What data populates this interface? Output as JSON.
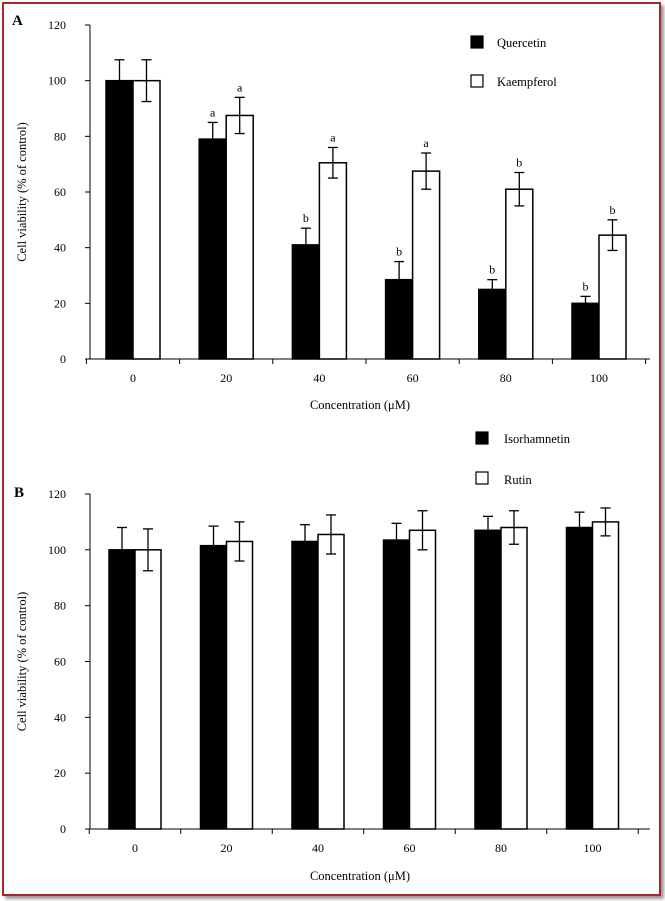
{
  "figure": {
    "colors": {
      "border": "#a8262a",
      "series_a": "#000000",
      "series_b": "#ffffff",
      "stroke": "#000000"
    }
  },
  "chart_data": [
    {
      "panel_label": "A",
      "type": "bar",
      "xlabel": "Concentration (μM)",
      "ylabel": "Cell viability (% of control)",
      "ylim": [
        0,
        120
      ],
      "yticks": [
        "0",
        "20",
        "40",
        "60",
        "80",
        "100",
        "120"
      ],
      "categories": [
        "0",
        "20",
        "40",
        "60",
        "80",
        "100"
      ],
      "legend_position": "top-right",
      "series": [
        {
          "name": "Quercetin",
          "fill": "#000000",
          "values": [
            100,
            79,
            41,
            28.5,
            25,
            20
          ],
          "errors": [
            7.5,
            6,
            6,
            6.5,
            3.5,
            2.5
          ],
          "labels": [
            "",
            "a",
            "b",
            "b",
            "b",
            "b"
          ]
        },
        {
          "name": "Kaempferol",
          "fill": "#ffffff",
          "values": [
            100,
            87.5,
            70.5,
            67.5,
            61,
            44.5
          ],
          "errors": [
            7.5,
            6.5,
            5.5,
            6.5,
            6,
            5.5
          ],
          "labels": [
            "",
            "a",
            "a",
            "a",
            "b",
            "b"
          ]
        }
      ]
    },
    {
      "panel_label": "B",
      "type": "bar",
      "xlabel": "Concentration (μM)",
      "ylabel": "Cell viability (% of control)",
      "ylim": [
        0,
        120
      ],
      "yticks": [
        "0",
        "20",
        "40",
        "60",
        "80",
        "100",
        "120"
      ],
      "categories": [
        "0",
        "20",
        "40",
        "60",
        "80",
        "100"
      ],
      "legend_position": "top-right",
      "series": [
        {
          "name": "Isorhamnetin",
          "fill": "#000000",
          "values": [
            100,
            101.5,
            103,
            103.5,
            107,
            108
          ],
          "errors": [
            8,
            7,
            6,
            6,
            5,
            5.5
          ],
          "labels": [
            "",
            "",
            "",
            "",
            "",
            ""
          ]
        },
        {
          "name": "Rutin",
          "fill": "#ffffff",
          "values": [
            100,
            103,
            105.5,
            107,
            108,
            110
          ],
          "errors": [
            7.5,
            7,
            7,
            7,
            6,
            5
          ]
        }
      ]
    }
  ]
}
